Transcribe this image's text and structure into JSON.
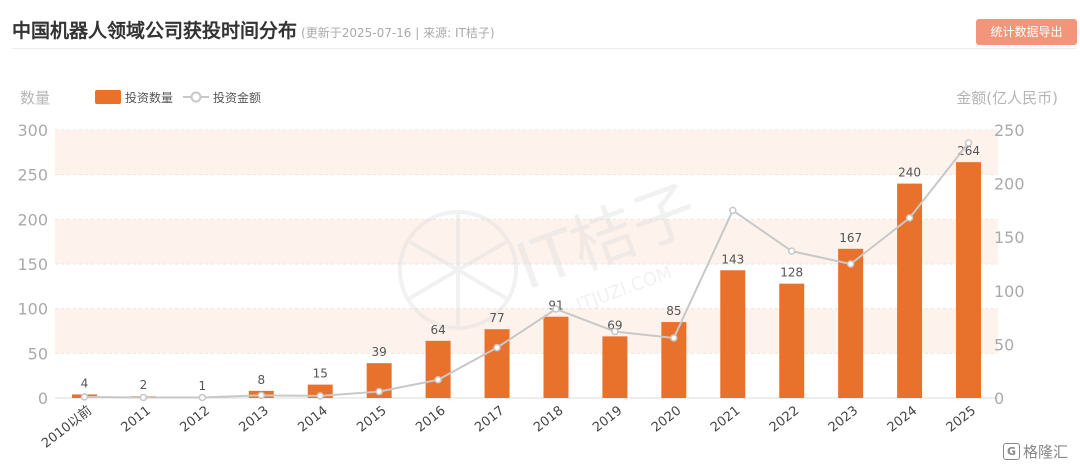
{
  "header": {
    "title": "中国机器人领域公司获投时间分布",
    "subtitle": "(更新于2025-07-16 | 来源: IT桔子)",
    "export_label": "统计数据导出"
  },
  "watermark": {
    "main": "IT桔子",
    "sub": "ITJUZI.COM",
    "corner": "格隆汇",
    "corner_badge": "G"
  },
  "colors": {
    "bar": "#e8712c",
    "line": "#c8c8c8",
    "band": "#fdf3ec",
    "axis_text": "#aaaaaa"
  },
  "chart_data": {
    "type": "bar",
    "categories": [
      "2010以前",
      "2011",
      "2012",
      "2013",
      "2014",
      "2015",
      "2016",
      "2017",
      "2018",
      "2019",
      "2020",
      "2021",
      "2022",
      "2023",
      "2024",
      "2025"
    ],
    "series": [
      {
        "name": "投资数量",
        "type": "bar",
        "axis": "left",
        "values": [
          4,
          2,
          1,
          8,
          15,
          39,
          64,
          77,
          91,
          69,
          85,
          143,
          128,
          167,
          240,
          264
        ]
      },
      {
        "name": "投资金额",
        "type": "line",
        "axis": "right",
        "values": [
          1,
          0.5,
          0.5,
          2.5,
          2,
          6,
          17,
          47,
          83,
          62,
          56,
          175,
          137,
          125,
          168,
          238
        ]
      }
    ],
    "ylabel_left": "数量",
    "ylabel_right": "金额(亿人民币)",
    "ylim_left": [
      0,
      300
    ],
    "ylim_right": [
      0,
      250
    ],
    "yticks_left": [
      0,
      50,
      100,
      150,
      200,
      250,
      300
    ],
    "yticks_right": [
      0,
      50,
      100,
      150,
      200,
      250
    ],
    "legend_position": "top-left",
    "grid": true
  }
}
